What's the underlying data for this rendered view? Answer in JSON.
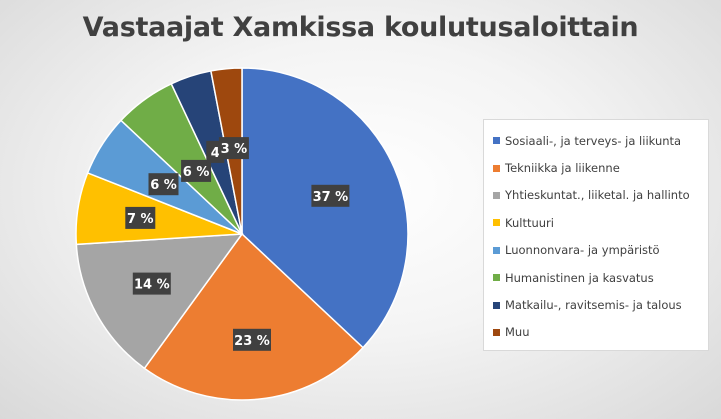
{
  "chart_data": {
    "type": "pie",
    "title": "Vastaajat Xamkissa koulutusaloittain",
    "legend_position": "right",
    "slices": [
      {
        "name": "Sosiaali-, ja terveys- ja liikunta",
        "value": 37,
        "label": "37 %",
        "color": "#4472c4"
      },
      {
        "name": "Tekniikka ja liikenne",
        "value": 23,
        "label": "23 %",
        "color": "#ed7d31"
      },
      {
        "name": "Yhtieskuntat., liiketal. ja hallinto",
        "value": 14,
        "label": "14 %",
        "color": "#a5a5a5"
      },
      {
        "name": "Kulttuuri",
        "value": 7,
        "label": "7 %",
        "color": "#ffc000"
      },
      {
        "name": "Luonnonvara- ja ympäristö",
        "value": 6,
        "label": "6 %",
        "color": "#5b9bd5"
      },
      {
        "name": "Humanistinen ja kasvatus",
        "value": 6,
        "label": "6 %",
        "color": "#70ad47"
      },
      {
        "name": "Matkailu-, ravitsemis- ja talous",
        "value": 4,
        "label": "4",
        "color": "#264478"
      },
      {
        "name": "Muu",
        "value": 3,
        "label": "3 %",
        "color": "#9e480e"
      }
    ]
  }
}
